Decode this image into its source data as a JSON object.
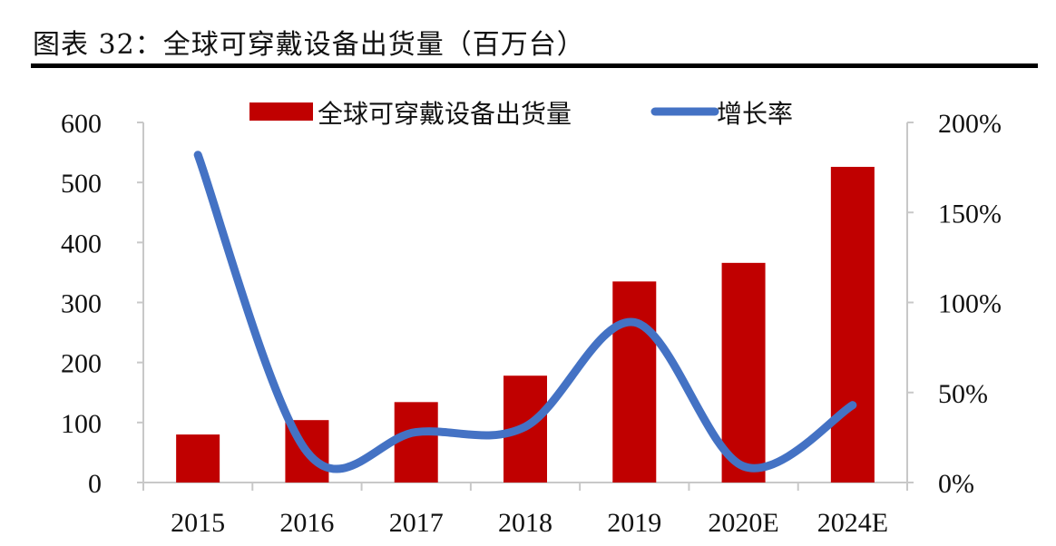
{
  "figure": {
    "title": "图表 32：全球可穿戴设备出货量（百万台）"
  },
  "legend": {
    "bar_label": "全球可穿戴设备出货量",
    "line_label": "增长率"
  },
  "colors": {
    "bar": "#C00000",
    "line": "#4472C4",
    "axis": "#C8C8C8"
  },
  "chart_data": {
    "type": "bar+line",
    "title": "图表 32：全球可穿戴设备出货量（百万台）",
    "categories": [
      "2015",
      "2016",
      "2017",
      "2018",
      "2019",
      "2020E",
      "2024E"
    ],
    "series": [
      {
        "name": "全球可穿戴设备出货量",
        "type": "bar",
        "axis": "left",
        "values": [
          80,
          104,
          134,
          178,
          335,
          366,
          526
        ]
      },
      {
        "name": "增长率",
        "type": "line",
        "axis": "right",
        "unit": "%",
        "values": [
          182,
          17,
          28,
          31,
          89,
          9,
          43
        ]
      }
    ],
    "left_axis": {
      "ylim": [
        0,
        600
      ],
      "ticks": [
        "0",
        "100",
        "200",
        "300",
        "400",
        "500",
        "600"
      ]
    },
    "right_axis": {
      "ylim": [
        0,
        200
      ],
      "ticks": [
        "0%",
        "50%",
        "100%",
        "150%",
        "200%"
      ]
    },
    "xlabel": "",
    "ylabel": "",
    "grid": false,
    "legend_position": "top"
  }
}
